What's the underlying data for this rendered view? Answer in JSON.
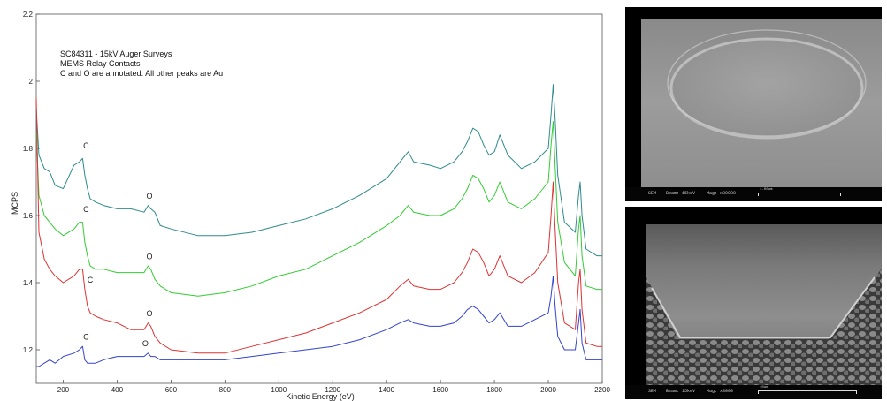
{
  "chart_data": {
    "type": "line",
    "title": "SC84311 - 15kV Auger Surveys",
    "annotations": [
      "MEMS Relay Contacts",
      "C and O are annotated. All other peaks are Au"
    ],
    "xlabel": "Kinetic Energy (eV)",
    "ylabel": "MCPS",
    "xlim": [
      100,
      2200
    ],
    "ylim": [
      1.1,
      2.2
    ],
    "x_ticks": [
      {
        "value": 200,
        "label": "200"
      },
      {
        "value": 400,
        "label": "400"
      },
      {
        "value": 600,
        "label": "600"
      },
      {
        "value": 800,
        "label": "800"
      },
      {
        "value": 1000,
        "label": "1000"
      },
      {
        "value": 1200,
        "label": "1200"
      },
      {
        "value": 1400,
        "label": "1400"
      },
      {
        "value": 1600,
        "label": "1600"
      },
      {
        "value": 1800,
        "label": "1800"
      },
      {
        "value": 2000,
        "label": "2000"
      },
      {
        "value": 2200,
        "label": "2200"
      }
    ],
    "y_ticks": [
      {
        "value": 1.2,
        "label": "1.2"
      },
      {
        "value": 1.4,
        "label": "1.4"
      },
      {
        "value": 1.6,
        "label": "1.6"
      },
      {
        "value": 1.8,
        "label": "1.8"
      },
      {
        "value": 2.0,
        "label": "2"
      },
      {
        "value": 2.2,
        "label": "2.2"
      }
    ],
    "x": [
      100,
      110,
      130,
      150,
      170,
      200,
      240,
      260,
      272,
      280,
      290,
      300,
      320,
      350,
      400,
      450,
      500,
      515,
      525,
      540,
      560,
      600,
      700,
      800,
      900,
      1000,
      1100,
      1200,
      1300,
      1400,
      1450,
      1480,
      1500,
      1560,
      1600,
      1650,
      1680,
      1700,
      1720,
      1740,
      1760,
      1780,
      1800,
      1820,
      1850,
      1900,
      1950,
      2000,
      2010,
      2018,
      2025,
      2035,
      2060,
      2100,
      2112,
      2118,
      2125,
      2140,
      2180,
      2200
    ],
    "series": [
      {
        "color": "#2e8b8b",
        "values": [
          1.92,
          1.78,
          1.74,
          1.73,
          1.69,
          1.68,
          1.75,
          1.76,
          1.77,
          1.72,
          1.68,
          1.65,
          1.64,
          1.63,
          1.62,
          1.62,
          1.61,
          1.63,
          1.62,
          1.61,
          1.57,
          1.56,
          1.54,
          1.54,
          1.55,
          1.57,
          1.59,
          1.62,
          1.66,
          1.71,
          1.76,
          1.79,
          1.76,
          1.75,
          1.74,
          1.76,
          1.79,
          1.82,
          1.86,
          1.85,
          1.81,
          1.78,
          1.79,
          1.84,
          1.78,
          1.74,
          1.76,
          1.8,
          1.9,
          1.99,
          1.89,
          1.72,
          1.58,
          1.55,
          1.66,
          1.7,
          1.6,
          1.5,
          1.48,
          1.48
        ]
      },
      {
        "color": "#33cc33",
        "values": [
          1.85,
          1.66,
          1.6,
          1.58,
          1.56,
          1.54,
          1.56,
          1.58,
          1.58,
          1.52,
          1.48,
          1.45,
          1.44,
          1.44,
          1.43,
          1.43,
          1.43,
          1.45,
          1.44,
          1.41,
          1.39,
          1.37,
          1.36,
          1.37,
          1.39,
          1.42,
          1.44,
          1.48,
          1.52,
          1.57,
          1.6,
          1.63,
          1.61,
          1.6,
          1.6,
          1.62,
          1.65,
          1.68,
          1.72,
          1.71,
          1.68,
          1.64,
          1.66,
          1.7,
          1.64,
          1.62,
          1.65,
          1.7,
          1.81,
          1.88,
          1.75,
          1.58,
          1.46,
          1.42,
          1.56,
          1.6,
          1.48,
          1.39,
          1.38,
          1.38
        ]
      },
      {
        "color": "#dd3333",
        "values": [
          1.95,
          1.55,
          1.47,
          1.44,
          1.42,
          1.4,
          1.42,
          1.44,
          1.44,
          1.38,
          1.33,
          1.31,
          1.3,
          1.29,
          1.28,
          1.26,
          1.26,
          1.28,
          1.27,
          1.24,
          1.22,
          1.2,
          1.19,
          1.19,
          1.21,
          1.23,
          1.25,
          1.28,
          1.31,
          1.35,
          1.39,
          1.41,
          1.39,
          1.38,
          1.38,
          1.4,
          1.43,
          1.46,
          1.5,
          1.49,
          1.46,
          1.42,
          1.44,
          1.48,
          1.42,
          1.4,
          1.43,
          1.49,
          1.6,
          1.7,
          1.56,
          1.4,
          1.28,
          1.26,
          1.4,
          1.44,
          1.32,
          1.22,
          1.21,
          1.21
        ]
      },
      {
        "color": "#3344cc",
        "values": [
          1.15,
          1.15,
          1.16,
          1.17,
          1.16,
          1.18,
          1.19,
          1.2,
          1.21,
          1.17,
          1.16,
          1.16,
          1.16,
          1.17,
          1.18,
          1.18,
          1.18,
          1.19,
          1.18,
          1.18,
          1.17,
          1.17,
          1.17,
          1.17,
          1.18,
          1.19,
          1.2,
          1.21,
          1.23,
          1.26,
          1.28,
          1.29,
          1.28,
          1.27,
          1.27,
          1.28,
          1.3,
          1.32,
          1.33,
          1.32,
          1.3,
          1.28,
          1.29,
          1.31,
          1.27,
          1.27,
          1.29,
          1.31,
          1.36,
          1.42,
          1.33,
          1.24,
          1.2,
          1.2,
          1.28,
          1.32,
          1.22,
          1.17,
          1.17,
          1.17
        ]
      }
    ],
    "peak_labels": [
      {
        "text": "C",
        "series": 0,
        "x": 285,
        "y": 1.8
      },
      {
        "text": "O",
        "series": 0,
        "x": 520,
        "y": 1.65
      },
      {
        "text": "C",
        "series": 1,
        "x": 285,
        "y": 1.61
      },
      {
        "text": "O",
        "series": 1,
        "x": 520,
        "y": 1.47
      },
      {
        "text": "C",
        "series": 2,
        "x": 300,
        "y": 1.4
      },
      {
        "text": "O",
        "series": 2,
        "x": 520,
        "y": 1.3
      },
      {
        "text": "C",
        "series": 3,
        "x": 285,
        "y": 1.23
      },
      {
        "text": "O",
        "series": 3,
        "x": 505,
        "y": 1.21
      }
    ],
    "grid": false,
    "legend": "none"
  },
  "sem_top": {
    "footer_left": "SEM",
    "footer_beam": "Beam: 15keV",
    "footer_mag": "Mag: x30000",
    "scale": "1.00um"
  },
  "sem_bottom": {
    "footer_left": "SEM",
    "footer_beam": "Beam: 15keV",
    "footer_mag": "Mag: x3000",
    "scale": "10um"
  }
}
